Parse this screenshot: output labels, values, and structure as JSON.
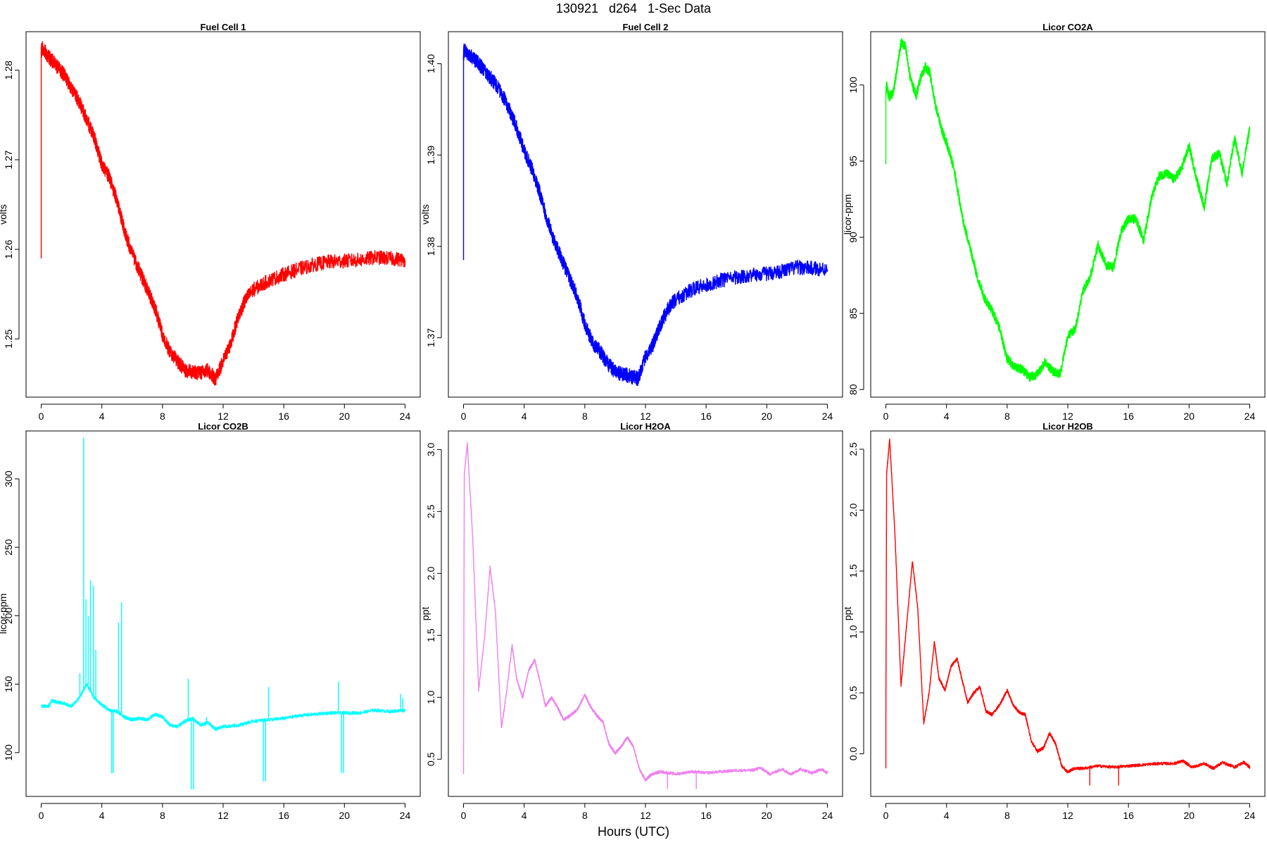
{
  "figure": {
    "title": "130921   d264   1-Sec Data",
    "xlabel": "Hours (UTC)"
  },
  "chart_data": [
    {
      "type": "line",
      "title": "Fuel Cell 1",
      "ylabel": "volts",
      "color": "#ff0000",
      "xlim": [
        -1,
        25
      ],
      "ylim": [
        1.2435,
        1.2843
      ],
      "xticks": [
        0,
        4,
        8,
        12,
        16,
        20,
        24
      ],
      "yticks": [
        1.25,
        1.26,
        1.27,
        1.28
      ],
      "ytick_labels": [
        "1.25",
        "1.26",
        "1.27",
        "1.28"
      ],
      "noise": 0.0008,
      "spikes": [
        [
          0.0,
          1.259
        ]
      ],
      "x": [
        0,
        0.05,
        0.5,
        1,
        1.5,
        2,
        2.5,
        3,
        3.5,
        4,
        4.5,
        5,
        5.5,
        6,
        6.5,
        7,
        7.5,
        8,
        8.5,
        9,
        9.5,
        10,
        10.5,
        11,
        11.5,
        12,
        12.5,
        13,
        13.5,
        14,
        15,
        16,
        17,
        18,
        19,
        20,
        21,
        22,
        23,
        24
      ],
      "y": [
        1.282,
        1.2825,
        1.2815,
        1.2805,
        1.2795,
        1.278,
        1.2765,
        1.2745,
        1.2725,
        1.2695,
        1.268,
        1.2655,
        1.262,
        1.2595,
        1.2575,
        1.2555,
        1.2535,
        1.2505,
        1.2485,
        1.2475,
        1.2465,
        1.2463,
        1.2462,
        1.2465,
        1.2455,
        1.2475,
        1.2495,
        1.2525,
        1.2545,
        1.2555,
        1.2565,
        1.2572,
        1.2578,
        1.2583,
        1.2586,
        1.2587,
        1.2588,
        1.2591,
        1.259,
        1.2588
      ]
    },
    {
      "type": "line",
      "title": "Fuel Cell 2",
      "ylabel": "volts",
      "color": "#0000ff",
      "xlim": [
        -1,
        25
      ],
      "ylim": [
        1.3635,
        1.4035
      ],
      "xticks": [
        0,
        4,
        8,
        12,
        16,
        20,
        24
      ],
      "yticks": [
        1.37,
        1.38,
        1.39,
        1.4
      ],
      "ytick_labels": [
        "1.37",
        "1.38",
        "1.39",
        "1.40"
      ],
      "noise": 0.0008,
      "spikes": [
        [
          0.0,
          1.3785
        ]
      ],
      "x": [
        0,
        0.05,
        0.5,
        1,
        1.5,
        2,
        2.5,
        3,
        3.5,
        4,
        4.5,
        5,
        5.5,
        6,
        6.5,
        7,
        7.5,
        8,
        8.5,
        9,
        9.5,
        10,
        10.5,
        11,
        11.5,
        12,
        12.5,
        13,
        13.5,
        14,
        15,
        16,
        17,
        18,
        19,
        20,
        21,
        22,
        23,
        24
      ],
      "y": [
        1.401,
        1.4015,
        1.4008,
        1.4,
        1.399,
        1.398,
        1.3968,
        1.395,
        1.393,
        1.3905,
        1.3885,
        1.386,
        1.383,
        1.3805,
        1.3785,
        1.3765,
        1.3745,
        1.3715,
        1.3695,
        1.3685,
        1.3672,
        1.3663,
        1.366,
        1.3658,
        1.3655,
        1.368,
        1.3693,
        1.3715,
        1.3732,
        1.3742,
        1.3752,
        1.3758,
        1.3763,
        1.3766,
        1.3769,
        1.377,
        1.3773,
        1.3777,
        1.3776,
        1.3775
      ]
    },
    {
      "type": "line",
      "title": "Licor CO2A",
      "ylabel": "licor-ppm",
      "color": "#00ff00",
      "xlim": [
        -1,
        25
      ],
      "ylim": [
        79.5,
        103.5
      ],
      "xticks": [
        0,
        4,
        8,
        12,
        16,
        20,
        24
      ],
      "yticks": [
        80,
        85,
        90,
        95,
        100
      ],
      "ytick_labels": [
        "80",
        "85",
        "90",
        "95",
        "100"
      ],
      "noise": 0.3,
      "spikes": [
        [
          0.0,
          94.8
        ]
      ],
      "x": [
        0,
        0.05,
        0.2,
        0.5,
        0.8,
        1,
        1.3,
        1.6,
        2,
        2.3,
        2.6,
        2.9,
        3.3,
        3.7,
        4,
        4.5,
        5,
        5.5,
        6,
        6.5,
        7,
        7.5,
        8,
        8.5,
        9,
        9.5,
        10,
        10.5,
        11,
        11.5,
        12,
        12.5,
        13,
        13.5,
        14,
        14.5,
        15,
        15.5,
        16,
        16.5,
        17,
        17.5,
        18,
        18.5,
        19,
        19.5,
        20,
        20.5,
        21,
        21.5,
        22,
        22.5,
        23,
        23.5,
        24
      ],
      "y": [
        99.5,
        100,
        99.2,
        99.5,
        101.5,
        102.8,
        102.5,
        100.5,
        99.3,
        100.5,
        101.2,
        100.8,
        98.5,
        97,
        96.2,
        94.5,
        91.5,
        89.5,
        87.5,
        86,
        85.2,
        84,
        82,
        81.5,
        81.3,
        80.8,
        81,
        81.8,
        81.2,
        81,
        83.5,
        84,
        86.5,
        87.5,
        89.5,
        88.2,
        88,
        90.3,
        91.2,
        91.2,
        89.8,
        92.5,
        94,
        94.2,
        93.8,
        94.5,
        96,
        93.8,
        92,
        95.2,
        95.5,
        93.5,
        96.5,
        94.2,
        97.2
      ]
    },
    {
      "type": "line",
      "title": "Licor CO2B",
      "ylabel": "licor-ppm",
      "color": "#00ffff",
      "xlim": [
        -1,
        25
      ],
      "ylim": [
        68,
        335
      ],
      "xticks": [
        0,
        4,
        8,
        12,
        16,
        20,
        24
      ],
      "yticks": [
        100,
        150,
        200,
        250,
        300
      ],
      "ytick_labels": [
        "100",
        "150",
        "200",
        "250",
        "300"
      ],
      "noise": 1.2,
      "spikes": [
        [
          2.55,
          158
        ],
        [
          2.8,
          330
        ],
        [
          2.95,
          212
        ],
        [
          3.1,
          200
        ],
        [
          3.25,
          226
        ],
        [
          3.45,
          222
        ],
        [
          3.6,
          175
        ],
        [
          4.65,
          85
        ],
        [
          4.75,
          85
        ],
        [
          5.1,
          195
        ],
        [
          5.3,
          210
        ],
        [
          9.7,
          154
        ],
        [
          9.9,
          73
        ],
        [
          10.05,
          73
        ],
        [
          10.9,
          126
        ],
        [
          14.65,
          79
        ],
        [
          14.8,
          79
        ],
        [
          15.0,
          148
        ],
        [
          19.6,
          152
        ],
        [
          19.8,
          85
        ],
        [
          19.95,
          85
        ],
        [
          23.7,
          143
        ],
        [
          23.85,
          140
        ]
      ],
      "x": [
        0,
        0.5,
        0.7,
        1,
        1.5,
        2,
        2.5,
        3,
        3.5,
        4,
        4.5,
        5,
        5.5,
        6,
        6.5,
        7,
        7.5,
        8,
        8.5,
        9,
        9.5,
        10,
        10.5,
        11,
        11.5,
        12,
        13,
        14,
        15,
        16,
        17,
        18,
        19,
        20,
        21,
        22,
        23,
        24
      ],
      "y": [
        134,
        134,
        138,
        137,
        136,
        134,
        140,
        150,
        140,
        135,
        131,
        130,
        126,
        124,
        125,
        124,
        128,
        126,
        120,
        119,
        123,
        125,
        120,
        122,
        117,
        119,
        120,
        123,
        124,
        125,
        127,
        128,
        129,
        129,
        129,
        131,
        130,
        131
      ]
    },
    {
      "type": "line",
      "title": "Licor H2OA",
      "ylabel": "ppt",
      "color": "#ee82ee",
      "xlim": [
        -1,
        25
      ],
      "ylim": [
        0.2,
        3.15
      ],
      "xticks": [
        0,
        4,
        8,
        12,
        16,
        20,
        24
      ],
      "yticks": [
        0.5,
        1.0,
        1.5,
        2.0,
        2.5,
        3.0
      ],
      "ytick_labels": [
        "0.5",
        "1.0",
        "1.5",
        "2.0",
        "2.5",
        "3.0"
      ],
      "noise": 0.012,
      "spikes": [
        [
          0.0,
          0.38
        ],
        [
          13.45,
          0.26
        ],
        [
          15.35,
          0.26
        ]
      ],
      "x": [
        0,
        0.05,
        0.25,
        0.6,
        1,
        1.4,
        1.75,
        2.1,
        2.5,
        2.85,
        3.2,
        3.5,
        3.9,
        4.3,
        4.7,
        5.0,
        5.4,
        5.8,
        6.2,
        6.6,
        7.0,
        7.5,
        8.0,
        8.4,
        8.8,
        9.2,
        9.6,
        10.0,
        10.4,
        10.8,
        11.2,
        11.6,
        12.0,
        12.4,
        13.0,
        14,
        15,
        16,
        17,
        18,
        19,
        19.6,
        20.2,
        21,
        21.6,
        22.2,
        23,
        23.6,
        24
      ],
      "y": [
        0.6,
        2.8,
        3.05,
        2.3,
        1.06,
        1.5,
        2.05,
        1.7,
        0.75,
        1.05,
        1.42,
        1.15,
        1.0,
        1.22,
        1.3,
        1.15,
        0.93,
        1.0,
        0.92,
        0.82,
        0.85,
        0.9,
        1.02,
        0.92,
        0.85,
        0.8,
        0.62,
        0.55,
        0.6,
        0.68,
        0.6,
        0.42,
        0.33,
        0.38,
        0.4,
        0.38,
        0.4,
        0.39,
        0.4,
        0.41,
        0.41,
        0.43,
        0.38,
        0.42,
        0.38,
        0.42,
        0.39,
        0.42,
        0.39
      ]
    },
    {
      "type": "line",
      "title": "Licor H2OB",
      "ylabel": "ppt",
      "color": "#ff0000",
      "xlim": [
        -1,
        25
      ],
      "ylim": [
        -0.35,
        2.65
      ],
      "xticks": [
        0,
        4,
        8,
        12,
        16,
        20,
        24
      ],
      "yticks": [
        0.0,
        0.5,
        1.0,
        1.5,
        2.0,
        2.5
      ],
      "ytick_labels": [
        "0.0",
        "0.5",
        "1.0",
        "1.5",
        "2.0",
        "2.5"
      ],
      "noise": 0.012,
      "spikes": [
        [
          0.0,
          -0.12
        ],
        [
          13.45,
          -0.26
        ],
        [
          15.35,
          -0.26
        ]
      ],
      "x": [
        0,
        0.05,
        0.25,
        0.6,
        1,
        1.4,
        1.75,
        2.1,
        2.5,
        2.85,
        3.2,
        3.5,
        3.9,
        4.3,
        4.7,
        5.0,
        5.4,
        5.8,
        6.2,
        6.6,
        7.0,
        7.5,
        8.0,
        8.4,
        8.8,
        9.2,
        9.6,
        10.0,
        10.4,
        10.8,
        11.2,
        11.6,
        12.0,
        12.4,
        13.0,
        14,
        15,
        16,
        17,
        18,
        19,
        19.6,
        20.2,
        21,
        21.6,
        22.2,
        23,
        23.6,
        24
      ],
      "y": [
        0.3,
        2.3,
        2.58,
        1.8,
        0.56,
        1.1,
        1.58,
        1.2,
        0.25,
        0.5,
        0.92,
        0.62,
        0.52,
        0.72,
        0.78,
        0.62,
        0.42,
        0.5,
        0.55,
        0.35,
        0.32,
        0.4,
        0.52,
        0.4,
        0.34,
        0.32,
        0.1,
        0.02,
        0.05,
        0.17,
        0.08,
        -0.1,
        -0.15,
        -0.12,
        -0.12,
        -0.1,
        -0.11,
        -0.1,
        -0.09,
        -0.08,
        -0.08,
        -0.06,
        -0.11,
        -0.08,
        -0.12,
        -0.07,
        -0.11,
        -0.07,
        -0.11
      ]
    }
  ]
}
